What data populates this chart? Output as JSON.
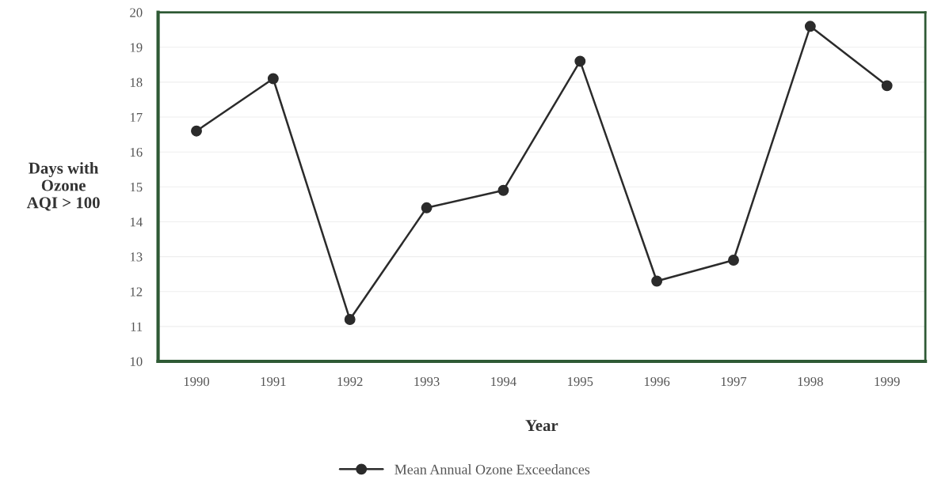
{
  "chart_data": {
    "type": "line",
    "xlabel": "Year",
    "ylabel": "Days with\nOzone\nAQI > 100",
    "categories": [
      "1990",
      "1991",
      "1992",
      "1993",
      "1994",
      "1995",
      "1996",
      "1997",
      "1998",
      "1999"
    ],
    "series": [
      {
        "name": "Mean Annual Ozone Exceedances",
        "color": "#2b2b2b",
        "values": [
          16.6,
          18.1,
          11.2,
          14.4,
          14.9,
          18.6,
          12.3,
          12.9,
          19.6,
          17.9
        ]
      }
    ],
    "ylim": [
      10,
      20
    ],
    "yticks": [
      10,
      11,
      12,
      13,
      14,
      15,
      16,
      17,
      18,
      19,
      20
    ],
    "grid": "y",
    "legend": "bottom",
    "marker": "circle",
    "line_style": "solid"
  }
}
